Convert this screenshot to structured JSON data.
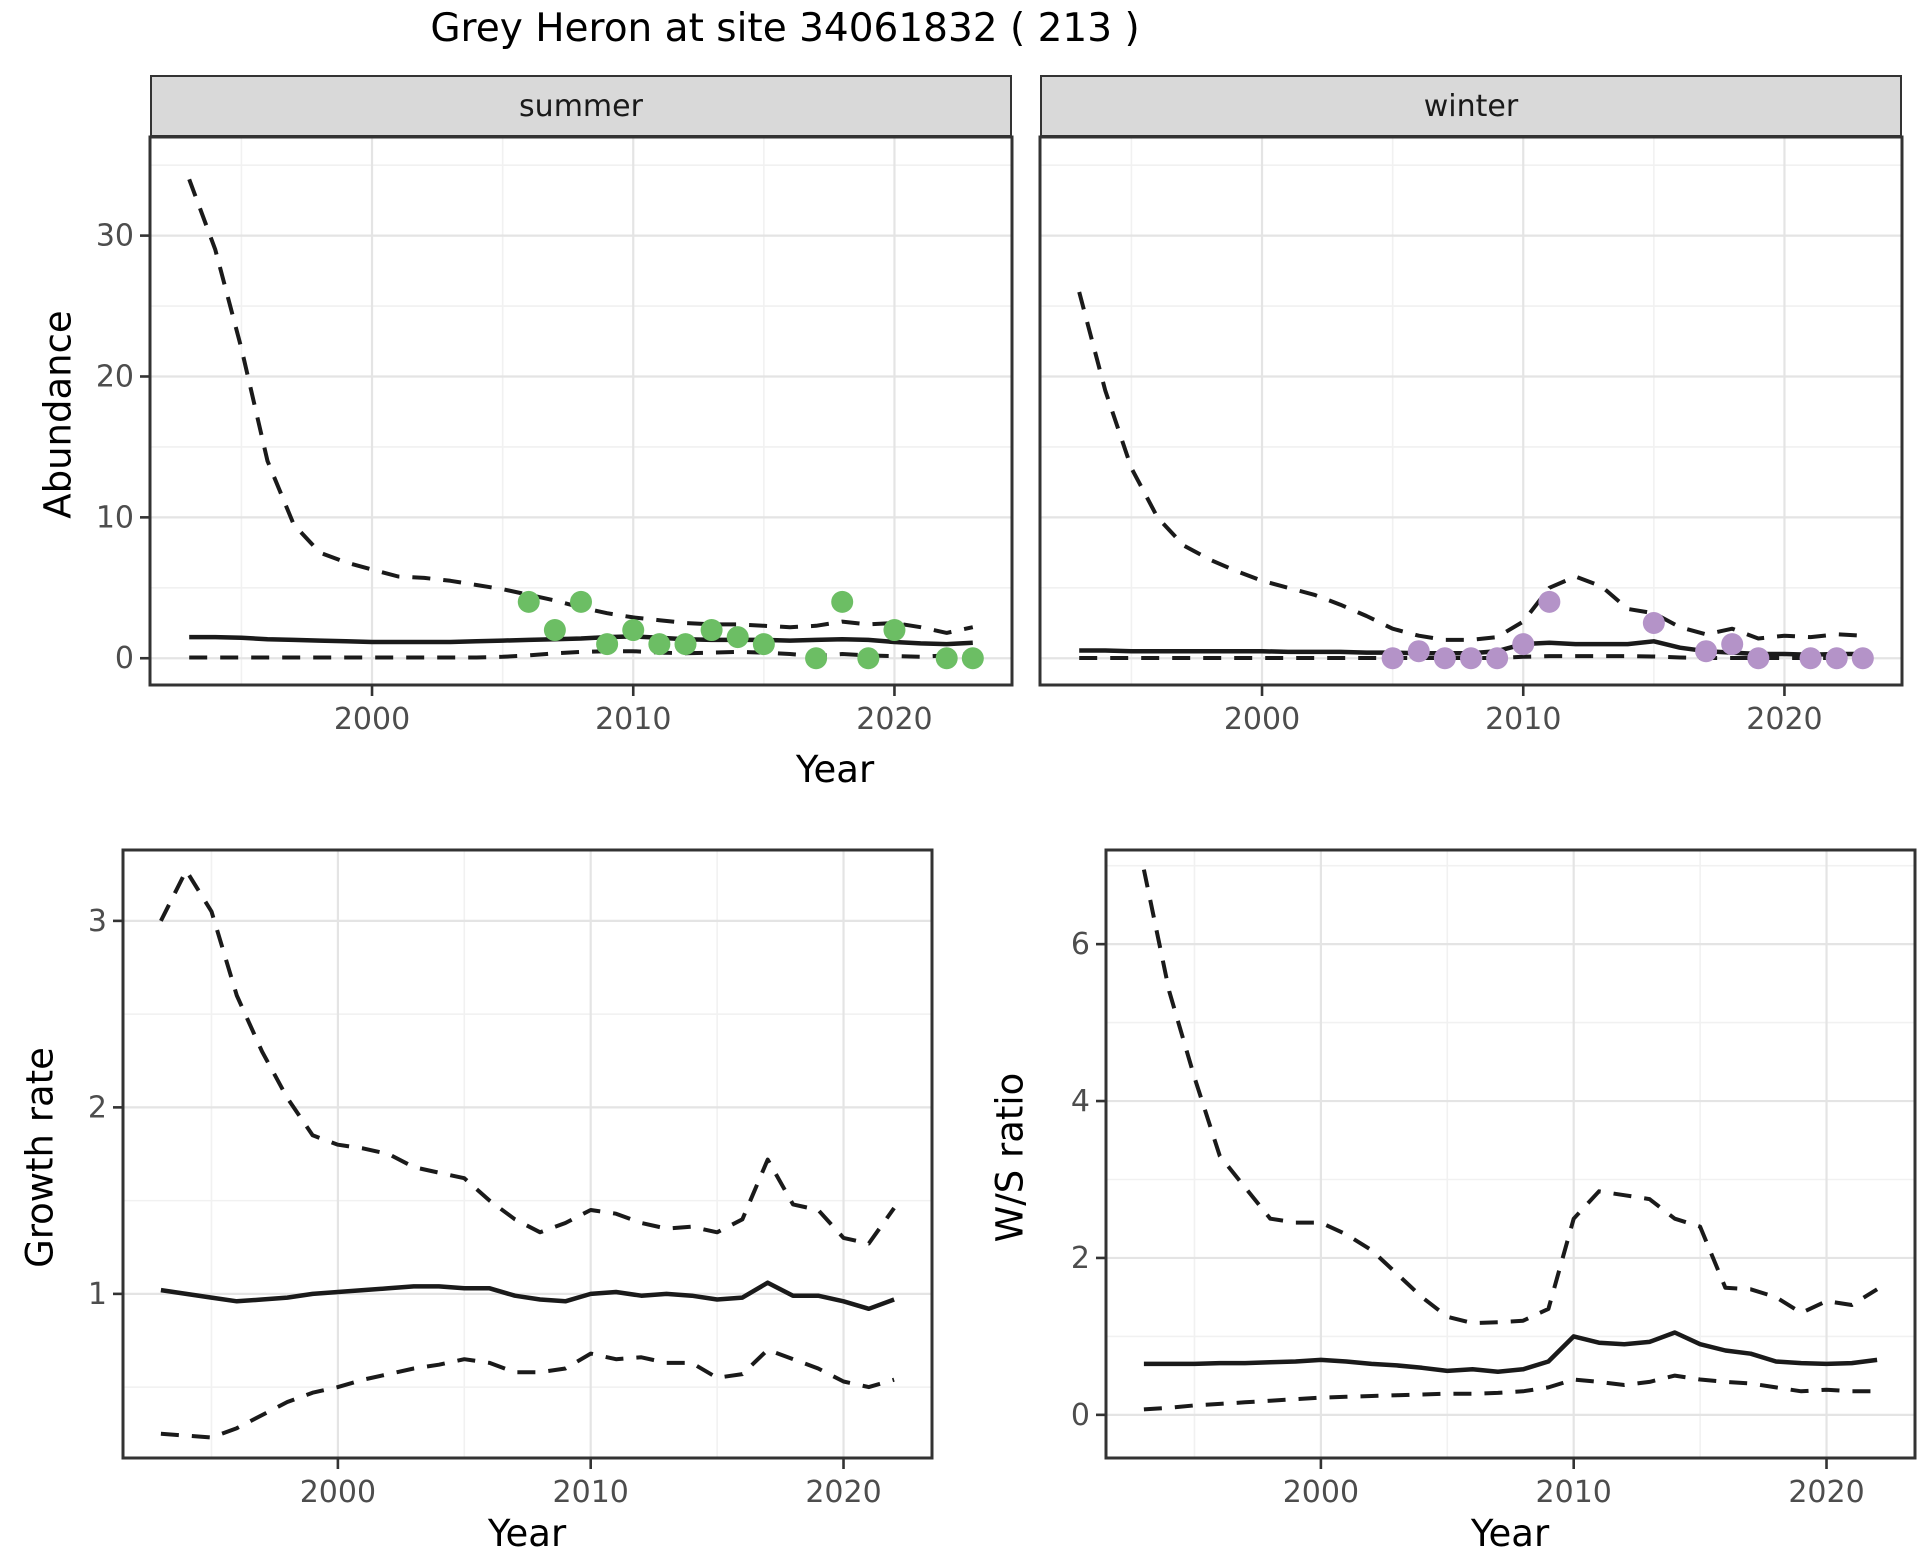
{
  "title": "Grey Heron at site 34061832 ( 213 )",
  "axes": {
    "abundance_label": "Abundance",
    "growth_label": "Growth rate",
    "ws_label": "W/S ratio",
    "year_label": "Year"
  },
  "colors": {
    "summer_points": "#6cbe64",
    "winter_points": "#b493c8",
    "line": "#1a1a1a",
    "strip_bg": "#d9d9d9",
    "grid_major": "#e4e4e4",
    "grid_minor": "#f1f1f1",
    "tick_text": "#4d4d4d",
    "panel_border": "#333333"
  },
  "chart_data": [
    {
      "id": "abundance-summer",
      "type": "line",
      "facet": "summer",
      "xlabel": "Year",
      "ylabel": "Abundance",
      "xlim": [
        1991.5,
        2024.5
      ],
      "ylim": [
        -1.9,
        37.0
      ],
      "xticks": [
        2000,
        2010,
        2020
      ],
      "xticks_minor": [
        1995,
        2005,
        2015
      ],
      "yticks": [
        0,
        10,
        20,
        30
      ],
      "yticks_minor": [
        5,
        15,
        25,
        35
      ],
      "grid": true,
      "legend": "none",
      "x": [
        1993,
        1994,
        1995,
        1996,
        1997,
        1998,
        1999,
        2000,
        2001,
        2002,
        2003,
        2004,
        2005,
        2006,
        2007,
        2008,
        2009,
        2010,
        2011,
        2012,
        2013,
        2014,
        2015,
        2016,
        2017,
        2018,
        2019,
        2020,
        2021,
        2022,
        2023
      ],
      "series": [
        {
          "name": "upper_95ci",
          "style": "dashed",
          "values": [
            34,
            29,
            22,
            14,
            9.5,
            7.5,
            6.8,
            6.3,
            5.8,
            5.7,
            5.5,
            5.2,
            4.9,
            4.5,
            4.1,
            3.6,
            3.2,
            2.9,
            2.7,
            2.5,
            2.4,
            2.4,
            2.3,
            2.2,
            2.3,
            2.6,
            2.4,
            2.5,
            2.2,
            1.8,
            2.2
          ]
        },
        {
          "name": "median",
          "style": "solid",
          "values": [
            1.5,
            1.5,
            1.45,
            1.35,
            1.3,
            1.25,
            1.2,
            1.15,
            1.15,
            1.15,
            1.15,
            1.2,
            1.25,
            1.3,
            1.35,
            1.4,
            1.5,
            1.55,
            1.45,
            1.35,
            1.3,
            1.3,
            1.3,
            1.25,
            1.3,
            1.35,
            1.3,
            1.15,
            1.05,
            1.0,
            1.1
          ]
        },
        {
          "name": "lower_95ci",
          "style": "dashed",
          "values": [
            0.05,
            0.05,
            0.05,
            0.05,
            0.05,
            0.05,
            0.05,
            0.05,
            0.05,
            0.05,
            0.05,
            0.05,
            0.1,
            0.2,
            0.35,
            0.45,
            0.5,
            0.5,
            0.4,
            0.35,
            0.4,
            0.45,
            0.4,
            0.3,
            0.15,
            0.3,
            0.2,
            0.15,
            0.1,
            0.2,
            0.35
          ]
        }
      ],
      "points": {
        "name": "observed-counts-summer",
        "color": "#6cbe64",
        "x": [
          2006,
          2007,
          2008,
          2009,
          2010,
          2011,
          2012,
          2013,
          2014,
          2015,
          2017,
          2018,
          2019,
          2020,
          2022,
          2023
        ],
        "y": [
          4,
          2,
          4,
          1,
          2,
          1,
          1,
          2,
          1.5,
          1,
          0,
          4,
          0,
          2,
          0,
          0
        ]
      }
    },
    {
      "id": "abundance-winter",
      "type": "line",
      "facet": "winter",
      "xlabel": "Year",
      "ylabel": "Abundance",
      "xlim": [
        1991.5,
        2024.5
      ],
      "ylim": [
        -1.9,
        37.0
      ],
      "xticks": [
        2000,
        2010,
        2020
      ],
      "xticks_minor": [
        1995,
        2005,
        2015
      ],
      "yticks": [
        0,
        10,
        20,
        30
      ],
      "yticks_minor": [
        5,
        15,
        25,
        35
      ],
      "grid": true,
      "legend": "none",
      "x": [
        1993,
        1994,
        1995,
        1996,
        1997,
        1998,
        1999,
        2000,
        2001,
        2002,
        2003,
        2004,
        2005,
        2006,
        2007,
        2008,
        2009,
        2010,
        2011,
        2012,
        2013,
        2014,
        2015,
        2016,
        2017,
        2018,
        2019,
        2020,
        2021,
        2022,
        2023
      ],
      "series": [
        {
          "name": "upper_95ci",
          "style": "dashed",
          "values": [
            26,
            19,
            13.5,
            10,
            8,
            7,
            6.2,
            5.5,
            5.0,
            4.5,
            3.8,
            3.0,
            2.1,
            1.6,
            1.3,
            1.3,
            1.5,
            2.6,
            5.0,
            5.8,
            5.1,
            3.5,
            3.2,
            2.2,
            1.7,
            2.1,
            1.4,
            1.6,
            1.5,
            1.7,
            1.6
          ]
        },
        {
          "name": "median",
          "style": "solid",
          "values": [
            0.55,
            0.55,
            0.5,
            0.5,
            0.5,
            0.5,
            0.5,
            0.5,
            0.45,
            0.45,
            0.45,
            0.4,
            0.4,
            0.35,
            0.35,
            0.35,
            0.5,
            1.0,
            1.1,
            1.0,
            1.0,
            1.0,
            1.2,
            0.75,
            0.5,
            0.4,
            0.3,
            0.3,
            0.25,
            0.3,
            0.3
          ]
        },
        {
          "name": "lower_95ci",
          "style": "dashed",
          "values": [
            0.02,
            0.02,
            0.02,
            0.02,
            0.02,
            0.02,
            0.02,
            0.02,
            0.02,
            0.02,
            0.02,
            0.02,
            0.02,
            0.02,
            0.02,
            0.02,
            0.02,
            0.1,
            0.15,
            0.15,
            0.15,
            0.15,
            0.12,
            0.05,
            0.02,
            0.02,
            0.02,
            0.02,
            0.02,
            0.02,
            0.02
          ]
        }
      ],
      "points": {
        "name": "observed-counts-winter",
        "color": "#b493c8",
        "x": [
          2005,
          2006,
          2007,
          2008,
          2009,
          2010,
          2011,
          2015,
          2017,
          2018,
          2019,
          2021,
          2022,
          2023
        ],
        "y": [
          0,
          0.5,
          0,
          0,
          0,
          1,
          4,
          2.5,
          0.5,
          1,
          0,
          0,
          0,
          0
        ]
      }
    },
    {
      "id": "growth-rate",
      "type": "line",
      "facet": "",
      "xlabel": "Year",
      "ylabel": "Growth rate",
      "xlim": [
        1991.5,
        2023.5
      ],
      "ylim": [
        0.12,
        3.38
      ],
      "xticks": [
        2000,
        2010,
        2020
      ],
      "xticks_minor": [
        1995,
        2005,
        2015
      ],
      "yticks": [
        1,
        2,
        3
      ],
      "yticks_minor": [
        0.5,
        1.5,
        2.5
      ],
      "grid": true,
      "legend": "none",
      "x": [
        1993,
        1994,
        1995,
        1996,
        1997,
        1998,
        1999,
        2000,
        2001,
        2002,
        2003,
        2004,
        2005,
        2006,
        2007,
        2008,
        2009,
        2010,
        2011,
        2012,
        2013,
        2014,
        2015,
        2016,
        2017,
        2018,
        2019,
        2020,
        2021,
        2022
      ],
      "series": [
        {
          "name": "upper_95ci",
          "style": "dashed",
          "values": [
            3.0,
            3.27,
            3.05,
            2.6,
            2.3,
            2.05,
            1.85,
            1.8,
            1.78,
            1.75,
            1.68,
            1.65,
            1.62,
            1.5,
            1.4,
            1.33,
            1.38,
            1.45,
            1.43,
            1.38,
            1.35,
            1.36,
            1.33,
            1.4,
            1.72,
            1.48,
            1.45,
            1.3,
            1.27,
            1.46
          ]
        },
        {
          "name": "median",
          "style": "solid",
          "values": [
            1.02,
            1.0,
            0.98,
            0.96,
            0.97,
            0.98,
            1.0,
            1.01,
            1.02,
            1.03,
            1.04,
            1.04,
            1.03,
            1.03,
            0.99,
            0.97,
            0.96,
            1.0,
            1.01,
            0.99,
            1.0,
            0.99,
            0.97,
            0.98,
            1.06,
            0.99,
            0.99,
            0.96,
            0.92,
            0.97
          ]
        },
        {
          "name": "lower_95ci",
          "style": "dashed",
          "values": [
            0.25,
            0.24,
            0.23,
            0.28,
            0.35,
            0.42,
            0.47,
            0.5,
            0.54,
            0.57,
            0.6,
            0.62,
            0.65,
            0.63,
            0.58,
            0.58,
            0.6,
            0.68,
            0.65,
            0.66,
            0.63,
            0.63,
            0.55,
            0.57,
            0.7,
            0.65,
            0.6,
            0.53,
            0.5,
            0.54
          ]
        }
      ]
    },
    {
      "id": "ws-ratio",
      "type": "line",
      "facet": "",
      "xlabel": "Year",
      "ylabel": "W/S ratio",
      "xlim": [
        1991.5,
        2023.5
      ],
      "ylim": [
        -0.55,
        7.2
      ],
      "xticks": [
        2000,
        2010,
        2020
      ],
      "xticks_minor": [
        1995,
        2005,
        2015
      ],
      "yticks": [
        0,
        2,
        4,
        6
      ],
      "yticks_minor": [
        1,
        3,
        5,
        7
      ],
      "grid": true,
      "legend": "none",
      "x": [
        1993,
        1994,
        1995,
        1996,
        1997,
        1998,
        1999,
        2000,
        2001,
        2002,
        2003,
        2004,
        2005,
        2006,
        2007,
        2008,
        2009,
        2010,
        2011,
        2012,
        2013,
        2014,
        2015,
        2016,
        2017,
        2018,
        2019,
        2020,
        2021,
        2022
      ],
      "series": [
        {
          "name": "upper_95ci",
          "style": "dashed",
          "values": [
            6.95,
            5.4,
            4.3,
            3.3,
            2.9,
            2.5,
            2.45,
            2.45,
            2.3,
            2.1,
            1.8,
            1.5,
            1.25,
            1.17,
            1.18,
            1.2,
            1.35,
            2.5,
            2.85,
            2.8,
            2.75,
            2.5,
            2.4,
            1.62,
            1.6,
            1.5,
            1.3,
            1.45,
            1.4,
            1.6
          ]
        },
        {
          "name": "median",
          "style": "solid",
          "values": [
            0.65,
            0.65,
            0.65,
            0.66,
            0.66,
            0.67,
            0.68,
            0.7,
            0.68,
            0.65,
            0.63,
            0.6,
            0.56,
            0.58,
            0.55,
            0.58,
            0.68,
            1.0,
            0.92,
            0.9,
            0.93,
            1.05,
            0.9,
            0.82,
            0.78,
            0.68,
            0.66,
            0.65,
            0.66,
            0.7
          ]
        },
        {
          "name": "lower_95ci",
          "style": "dashed",
          "values": [
            0.07,
            0.09,
            0.12,
            0.14,
            0.16,
            0.18,
            0.2,
            0.22,
            0.23,
            0.24,
            0.25,
            0.26,
            0.27,
            0.27,
            0.28,
            0.3,
            0.35,
            0.45,
            0.42,
            0.38,
            0.42,
            0.5,
            0.45,
            0.42,
            0.4,
            0.35,
            0.3,
            0.32,
            0.3,
            0.3
          ]
        }
      ]
    }
  ]
}
